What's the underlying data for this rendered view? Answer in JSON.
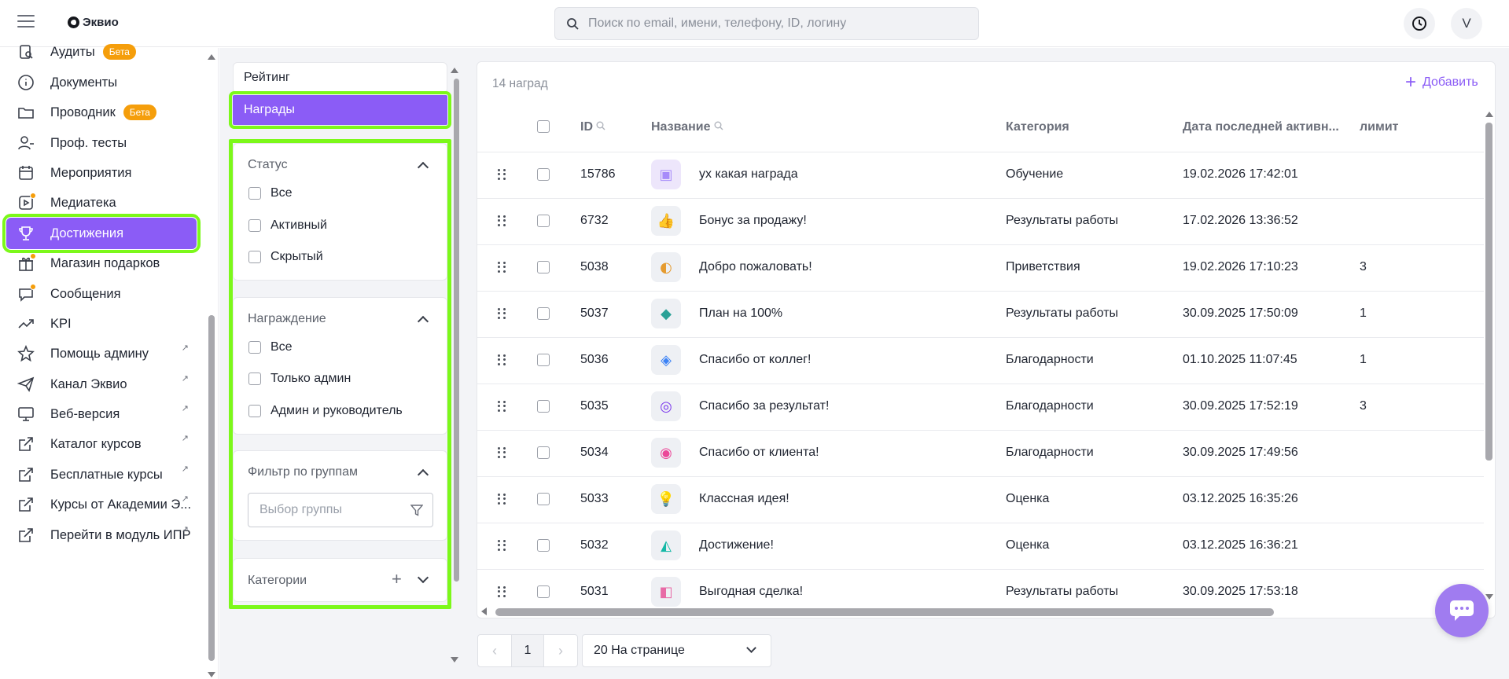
{
  "header": {
    "logo_text": "Эквио",
    "search_placeholder": "Поиск по email, имени, телефону, ID, логину",
    "avatar_letter": "V"
  },
  "sidebar": {
    "items": [
      {
        "label": "Аудиты",
        "icon": "audit-icon",
        "badge": "Бета"
      },
      {
        "label": "Документы",
        "icon": "info-icon"
      },
      {
        "label": "Проводник",
        "icon": "folder-icon",
        "badge": "Бета"
      },
      {
        "label": "Проф. тесты",
        "icon": "person-test-icon"
      },
      {
        "label": "Мероприятия",
        "icon": "calendar-icon"
      },
      {
        "label": "Медиатека",
        "icon": "media-icon"
      },
      {
        "label": "Достижения",
        "icon": "trophy-icon",
        "active": true
      },
      {
        "label": "Магазин подарков",
        "icon": "gift-icon"
      },
      {
        "label": "Сообщения",
        "icon": "chat-icon"
      },
      {
        "label": "KPI",
        "icon": "trend-icon"
      },
      {
        "label": "Помощь админу",
        "icon": "star-icon",
        "external": true
      },
      {
        "label": "Канал Эквио",
        "icon": "send-icon",
        "external": true
      },
      {
        "label": "Веб-версия",
        "icon": "monitor-icon",
        "external": true
      },
      {
        "label": "Каталог курсов",
        "icon": "external-link-icon",
        "external": true
      },
      {
        "label": "Бесплатные курсы",
        "icon": "external-link-icon",
        "external": true
      },
      {
        "label": "Курсы от Академии Э...",
        "icon": "external-link-icon",
        "external": true
      },
      {
        "label": "Перейти в модуль ИПР",
        "icon": "external-link-icon",
        "external": true
      }
    ],
    "external_glyph": "↗"
  },
  "filters": {
    "tabs": [
      "Рейтинг",
      "Награды"
    ],
    "status": {
      "title": "Статус",
      "options": [
        "Все",
        "Активный",
        "Скрытый"
      ]
    },
    "reward": {
      "title": "Награждение",
      "options": [
        "Все",
        "Только админ",
        "Админ и руководитель"
      ]
    },
    "groups": {
      "title": "Фильтр по группам",
      "placeholder": "Выбор группы"
    },
    "categories": {
      "title": "Категории"
    }
  },
  "table": {
    "count_label": "14 наград",
    "add_label": "Добавить",
    "columns": [
      "ID",
      "Название",
      "Категория",
      "Дата последней активн...",
      "лимит"
    ],
    "rows": [
      {
        "id": "15786",
        "name": "ух какая награда",
        "category": "Обучение",
        "date": "19.02.2026 17:42:01",
        "limit": "",
        "thumb": "image-placeholder-icon"
      },
      {
        "id": "6732",
        "name": "Бонус за продажу!",
        "category": "Результаты работы",
        "date": "17.02.2026 13:36:52",
        "limit": "",
        "thumb": "thumbs-up-icon"
      },
      {
        "id": "5038",
        "name": "Добро пожаловать!",
        "category": "Приветствия",
        "date": "19.02.2026 17:10:23",
        "limit": "3",
        "thumb": "welcome-icon"
      },
      {
        "id": "5037",
        "name": "План на 100%",
        "category": "Результаты работы",
        "date": "30.09.2025 17:50:09",
        "limit": "1",
        "thumb": "plan-icon"
      },
      {
        "id": "5036",
        "name": "Спасибо от коллег!",
        "category": "Благодарности",
        "date": "01.10.2025 11:07:45",
        "limit": "1",
        "thumb": "colleague-thanks-icon"
      },
      {
        "id": "5035",
        "name": "Спасибо за результат!",
        "category": "Благодарности",
        "date": "30.09.2025 17:52:19",
        "limit": "3",
        "thumb": "target-icon"
      },
      {
        "id": "5034",
        "name": "Спасибо от клиента!",
        "category": "Благодарности",
        "date": "30.09.2025 17:49:56",
        "limit": "",
        "thumb": "client-thanks-icon"
      },
      {
        "id": "5033",
        "name": "Классная идея!",
        "category": "Оценка",
        "date": "03.12.2025 16:35:26",
        "limit": "",
        "thumb": "lightbulb-icon"
      },
      {
        "id": "5032",
        "name": "Достижение!",
        "category": "Оценка",
        "date": "03.12.2025 16:36:21",
        "limit": "",
        "thumb": "achievement-icon"
      },
      {
        "id": "5031",
        "name": "Выгодная сделка!",
        "category": "Результаты работы",
        "date": "30.09.2025 17:53:18",
        "limit": "",
        "thumb": "deal-icon"
      }
    ]
  },
  "pagination": {
    "page": "1",
    "prev": "‹",
    "next": "›",
    "per_page": "20 На странице"
  },
  "colors": {
    "accent": "#8b5cf6",
    "highlight": "#7cf81a",
    "beta": "#f59e0b"
  }
}
